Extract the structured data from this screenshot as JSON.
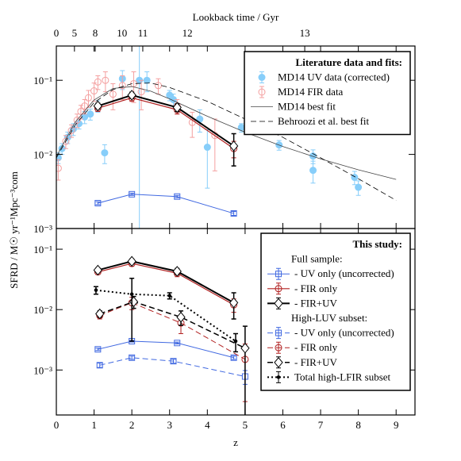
{
  "chart_data": [
    {
      "type": "line",
      "x2label": "Lookback time / Gyr",
      "xlim": [
        0,
        9.5
      ],
      "xticks": [
        0,
        1,
        2,
        3,
        4,
        5,
        6,
        7,
        8,
        9
      ],
      "log_y": true,
      "ylim": [
        0.001,
        0.29
      ],
      "x2ticks": [
        {
          "value": 0,
          "label": "0"
        },
        {
          "value": 0.48,
          "label": "5"
        },
        {
          "value": 1.03,
          "label": "8"
        },
        {
          "value": 1.74,
          "label": "10"
        },
        {
          "value": 2.29,
          "label": "11"
        },
        {
          "value": 3.47,
          "label": "12"
        },
        {
          "value": 6.58,
          "label": "13"
        }
      ],
      "yticks": [
        {
          "value": 0.001,
          "label": "10⁻³"
        },
        {
          "value": 0.01,
          "label": "10⁻²"
        },
        {
          "value": 0.1,
          "label": "10⁻¹"
        }
      ],
      "legend_title": "Literature data and fits:",
      "legend_loc": "upper right",
      "series": [
        {
          "name": "MD14 UV data (corrected)",
          "color": "#87cefa",
          "marker": "o",
          "filled": true,
          "linestyle": "none",
          "x": [
            0.05,
            0.15,
            0.3,
            0.45,
            0.6,
            0.75,
            0.9,
            1.1,
            1.28,
            1.75,
            2.2,
            2.4,
            3.0,
            3.1,
            3.8,
            4.0,
            4.9,
            5.9,
            6.8,
            6.8,
            7.9,
            8.0
          ],
          "values": [
            0.009,
            0.012,
            0.017,
            0.022,
            0.026,
            0.032,
            0.035,
            0.045,
            0.0105,
            0.105,
            0.1,
            0.1,
            0.063,
            0.055,
            0.03,
            0.0125,
            0.023,
            0.0134,
            0.0095,
            0.0061,
            0.0049,
            0.0036
          ],
          "errors": [
            0.0015,
            0.002,
            0.003,
            0.004,
            0.004,
            0.006,
            0.006,
            0.008,
            0.003,
            0.03,
            0.2,
            0.03,
            0.01,
            0.01,
            0.01,
            0.009,
            0.003,
            0.002,
            0.002,
            0.002,
            0.001,
            0.0008
          ]
        },
        {
          "name": "MD14 FIR data",
          "color": "#f4a0a0",
          "marker": "o",
          "filled": false,
          "linestyle": "none",
          "x": [
            0.05,
            0.25,
            0.4,
            0.55,
            0.65,
            0.75,
            0.85,
            1.0,
            1.1,
            1.3,
            1.5,
            1.75,
            2.05,
            2.25,
            2.7,
            3.2,
            3.6,
            4.2
          ],
          "values": [
            0.0065,
            0.015,
            0.021,
            0.029,
            0.038,
            0.045,
            0.058,
            0.072,
            0.095,
            0.1,
            0.065,
            0.085,
            0.09,
            0.07,
            0.085,
            0.045,
            0.027,
            0.018
          ],
          "errors": [
            0.002,
            0.003,
            0.004,
            0.006,
            0.008,
            0.01,
            0.015,
            0.02,
            0.02,
            0.03,
            0.025,
            0.03,
            0.04,
            0.03,
            0.02,
            0.01,
            0.01,
            0.012
          ]
        },
        {
          "name": "MD14 best fit",
          "color": "#444444",
          "marker": null,
          "linestyle": "solid",
          "linewidth": 0.8,
          "x": [
            0,
            0.5,
            1,
            1.5,
            2,
            2.5,
            3,
            4,
            5,
            6,
            7,
            8,
            9
          ],
          "values": [
            0.0094,
            0.0273,
            0.0542,
            0.0775,
            0.0824,
            0.0714,
            0.0561,
            0.0327,
            0.0199,
            0.0128,
            0.0087,
            0.0062,
            0.0046
          ]
        },
        {
          "name": "Behroozi et al. best fit",
          "color": "#000000",
          "marker": null,
          "linestyle": "dashed",
          "linewidth": 0.8,
          "x": [
            0,
            0.5,
            1,
            1.5,
            2,
            2.5,
            3,
            4,
            5,
            6,
            7,
            8,
            9
          ],
          "values": [
            0.009,
            0.025,
            0.05,
            0.075,
            0.09,
            0.092,
            0.08,
            0.052,
            0.03,
            0.017,
            0.009,
            0.0047,
            0.0024
          ]
        },
        {
          "color": "#4169e1",
          "marker": "s",
          "filled": false,
          "linestyle": "solid",
          "linewidth": 1,
          "x": [
            1.1,
            2.0,
            3.2,
            4.7
          ],
          "values": [
            0.0022,
            0.0029,
            0.0027,
            0.0016
          ],
          "errors": [
            0.0001,
            0.0001,
            0.0001,
            0.0001
          ]
        },
        {
          "color": "#b22222",
          "marker": "o",
          "filled": false,
          "linestyle": "solid",
          "linewidth": 1.2,
          "x": [
            1.1,
            2.0,
            3.2,
            4.7
          ],
          "values": [
            0.042,
            0.058,
            0.04,
            0.012
          ],
          "errors": [
            0.004,
            0.006,
            0.005,
            0.003
          ]
        },
        {
          "color": "#000000",
          "marker": "D",
          "filled": false,
          "linestyle": "solid",
          "linewidth": 2,
          "x": [
            1.1,
            2.0,
            3.2,
            4.7
          ],
          "values": [
            0.045,
            0.063,
            0.043,
            0.013
          ],
          "errors": [
            0.004,
            0.006,
            0.005,
            0.006
          ]
        }
      ]
    },
    {
      "type": "line",
      "xlabel": "z",
      "ylabel": "SFRD / M☉ yr⁻¹Mpc⁻³com",
      "xlim": [
        0,
        9.5
      ],
      "xticks": [
        0,
        1,
        2,
        3,
        4,
        5,
        6,
        7,
        8,
        9
      ],
      "log_y": true,
      "ylim": [
        0.00018,
        0.22
      ],
      "yticks": [
        {
          "value": 0.001,
          "label": "10⁻³"
        },
        {
          "value": 0.01,
          "label": "10⁻²"
        },
        {
          "value": 0.1,
          "label": "10⁻¹"
        }
      ],
      "legend_title": "This study:",
      "legend_loc": "upper right",
      "legend_headings": [
        "Full sample:",
        "High-LUV subset:"
      ],
      "series": [
        {
          "name": "- UV only (uncorrected)",
          "color": "#4169e1",
          "marker": "s",
          "filled": false,
          "linestyle": "solid",
          "linewidth": 1,
          "x": [
            1.1,
            2.0,
            3.2,
            4.7
          ],
          "values": [
            0.0022,
            0.003,
            0.0028,
            0.0016
          ],
          "errors": [
            0.0001,
            0.0001,
            0.0001,
            0.0001
          ]
        },
        {
          "name": "- FIR only",
          "color": "#b22222",
          "marker": "o",
          "filled": false,
          "linestyle": "solid",
          "linewidth": 1.2,
          "x": [
            1.1,
            2.0,
            3.2,
            4.7
          ],
          "values": [
            0.042,
            0.058,
            0.04,
            0.012
          ],
          "errors": [
            0.004,
            0.006,
            0.005,
            0.003
          ]
        },
        {
          "name": "- FIR+UV",
          "color": "#000000",
          "marker": "D",
          "filled": false,
          "linestyle": "solid",
          "linewidth": 2,
          "x": [
            1.1,
            2.0,
            3.2,
            4.7
          ],
          "values": [
            0.045,
            0.063,
            0.043,
            0.013
          ],
          "errors": [
            0.004,
            0.006,
            0.005,
            0.006
          ]
        },
        {
          "name": "- UV only (uncorrected)",
          "color": "#4169e1",
          "marker": "s",
          "filled": false,
          "linestyle": "dashed",
          "linewidth": 1,
          "x": [
            1.15,
            2.0,
            3.1,
            5.0
          ],
          "values": [
            0.0012,
            0.0016,
            0.0014,
            0.00078
          ],
          "errors": [
            0.0001,
            0.0001,
            0.0001,
            0.0002
          ]
        },
        {
          "name": "- FIR only",
          "color": "#b22222",
          "marker": "o",
          "filled": false,
          "linestyle": "dashed",
          "linewidth": 1,
          "x": [
            1.15,
            2.0,
            3.3,
            5.0
          ],
          "values": [
            0.008,
            0.013,
            0.006,
            0.0015
          ],
          "errors": [
            0.001,
            0.003,
            0.002,
            0.0012
          ]
        },
        {
          "name": "- FIR+UV",
          "color": "#000000",
          "marker": "D",
          "filled": false,
          "linestyle": "dashed",
          "linewidth": 1.5,
          "x": [
            1.15,
            2.05,
            3.3,
            5.0
          ],
          "values": [
            0.0085,
            0.0135,
            0.0075,
            0.0023
          ],
          "errors": [
            0.001,
            0.003,
            0.002,
            0.003
          ]
        },
        {
          "name": "Total high-LFIR subset",
          "color": "#000000",
          "marker": ".",
          "filled": true,
          "linestyle": "dotted",
          "linewidth": 2,
          "x": [
            1.05,
            2.0,
            3.0,
            4.75
          ],
          "values": [
            0.021,
            0.018,
            0.017,
            0.003
          ],
          "errors": [
            0.003,
            0.015,
            0.002,
            0.001
          ]
        }
      ]
    }
  ]
}
